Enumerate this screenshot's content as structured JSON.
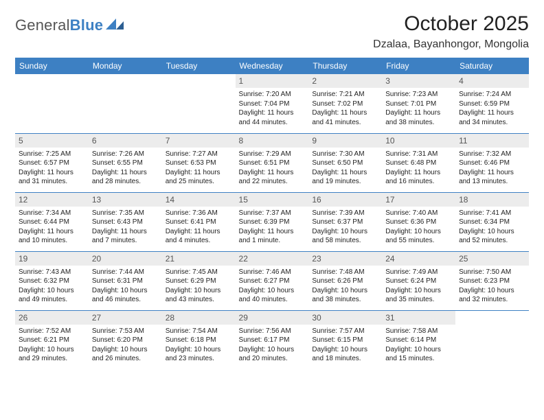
{
  "logo": {
    "textLeft": "General",
    "textRight": "Blue",
    "shapeColor": "#3d80c3"
  },
  "title": "October 2025",
  "location": "Dzalaa, Bayanhongor, Mongolia",
  "style": {
    "headerBg": "#3d80c3",
    "headerText": "#ffffff",
    "dayNumBg": "#ececec",
    "dayNumText": "#555555",
    "bodyText": "#222222",
    "rowBorder": "#3d80c3",
    "titleFontSize": 30,
    "locationFontSize": 16,
    "headerFontSize": 12,
    "dayNumFontSize": 12,
    "bodyFontSize": 10
  },
  "dayHeaders": [
    "Sunday",
    "Monday",
    "Tuesday",
    "Wednesday",
    "Thursday",
    "Friday",
    "Saturday"
  ],
  "weeks": [
    [
      {
        "empty": true
      },
      {
        "empty": true
      },
      {
        "empty": true
      },
      {
        "n": "1",
        "sr": "7:20 AM",
        "ss": "7:04 PM",
        "dl": "11 hours and 44 minutes."
      },
      {
        "n": "2",
        "sr": "7:21 AM",
        "ss": "7:02 PM",
        "dl": "11 hours and 41 minutes."
      },
      {
        "n": "3",
        "sr": "7:23 AM",
        "ss": "7:01 PM",
        "dl": "11 hours and 38 minutes."
      },
      {
        "n": "4",
        "sr": "7:24 AM",
        "ss": "6:59 PM",
        "dl": "11 hours and 34 minutes."
      }
    ],
    [
      {
        "n": "5",
        "sr": "7:25 AM",
        "ss": "6:57 PM",
        "dl": "11 hours and 31 minutes."
      },
      {
        "n": "6",
        "sr": "7:26 AM",
        "ss": "6:55 PM",
        "dl": "11 hours and 28 minutes."
      },
      {
        "n": "7",
        "sr": "7:27 AM",
        "ss": "6:53 PM",
        "dl": "11 hours and 25 minutes."
      },
      {
        "n": "8",
        "sr": "7:29 AM",
        "ss": "6:51 PM",
        "dl": "11 hours and 22 minutes."
      },
      {
        "n": "9",
        "sr": "7:30 AM",
        "ss": "6:50 PM",
        "dl": "11 hours and 19 minutes."
      },
      {
        "n": "10",
        "sr": "7:31 AM",
        "ss": "6:48 PM",
        "dl": "11 hours and 16 minutes."
      },
      {
        "n": "11",
        "sr": "7:32 AM",
        "ss": "6:46 PM",
        "dl": "11 hours and 13 minutes."
      }
    ],
    [
      {
        "n": "12",
        "sr": "7:34 AM",
        "ss": "6:44 PM",
        "dl": "11 hours and 10 minutes."
      },
      {
        "n": "13",
        "sr": "7:35 AM",
        "ss": "6:43 PM",
        "dl": "11 hours and 7 minutes."
      },
      {
        "n": "14",
        "sr": "7:36 AM",
        "ss": "6:41 PM",
        "dl": "11 hours and 4 minutes."
      },
      {
        "n": "15",
        "sr": "7:37 AM",
        "ss": "6:39 PM",
        "dl": "11 hours and 1 minute."
      },
      {
        "n": "16",
        "sr": "7:39 AM",
        "ss": "6:37 PM",
        "dl": "10 hours and 58 minutes."
      },
      {
        "n": "17",
        "sr": "7:40 AM",
        "ss": "6:36 PM",
        "dl": "10 hours and 55 minutes."
      },
      {
        "n": "18",
        "sr": "7:41 AM",
        "ss": "6:34 PM",
        "dl": "10 hours and 52 minutes."
      }
    ],
    [
      {
        "n": "19",
        "sr": "7:43 AM",
        "ss": "6:32 PM",
        "dl": "10 hours and 49 minutes."
      },
      {
        "n": "20",
        "sr": "7:44 AM",
        "ss": "6:31 PM",
        "dl": "10 hours and 46 minutes."
      },
      {
        "n": "21",
        "sr": "7:45 AM",
        "ss": "6:29 PM",
        "dl": "10 hours and 43 minutes."
      },
      {
        "n": "22",
        "sr": "7:46 AM",
        "ss": "6:27 PM",
        "dl": "10 hours and 40 minutes."
      },
      {
        "n": "23",
        "sr": "7:48 AM",
        "ss": "6:26 PM",
        "dl": "10 hours and 38 minutes."
      },
      {
        "n": "24",
        "sr": "7:49 AM",
        "ss": "6:24 PM",
        "dl": "10 hours and 35 minutes."
      },
      {
        "n": "25",
        "sr": "7:50 AM",
        "ss": "6:23 PM",
        "dl": "10 hours and 32 minutes."
      }
    ],
    [
      {
        "n": "26",
        "sr": "7:52 AM",
        "ss": "6:21 PM",
        "dl": "10 hours and 29 minutes."
      },
      {
        "n": "27",
        "sr": "7:53 AM",
        "ss": "6:20 PM",
        "dl": "10 hours and 26 minutes."
      },
      {
        "n": "28",
        "sr": "7:54 AM",
        "ss": "6:18 PM",
        "dl": "10 hours and 23 minutes."
      },
      {
        "n": "29",
        "sr": "7:56 AM",
        "ss": "6:17 PM",
        "dl": "10 hours and 20 minutes."
      },
      {
        "n": "30",
        "sr": "7:57 AM",
        "ss": "6:15 PM",
        "dl": "10 hours and 18 minutes."
      },
      {
        "n": "31",
        "sr": "7:58 AM",
        "ss": "6:14 PM",
        "dl": "10 hours and 15 minutes."
      },
      {
        "empty": true
      }
    ]
  ],
  "labels": {
    "sunrise": "Sunrise:",
    "sunset": "Sunset:",
    "daylight": "Daylight:"
  }
}
